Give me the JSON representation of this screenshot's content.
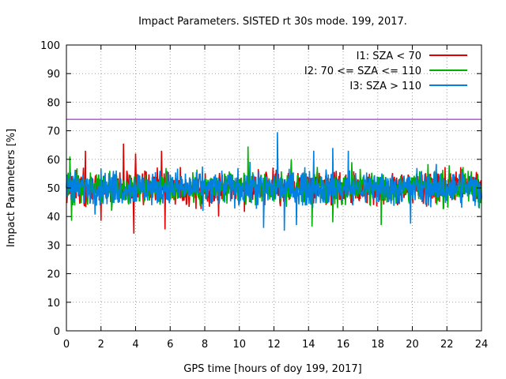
{
  "chart_data": {
    "type": "line",
    "title": "Impact Parameters. SISTED rt 30s mode. 199, 2017.",
    "xlabel": "GPS time [hours of doy 199, 2017]",
    "ylabel": "Impact Parameters [%]",
    "xlim": [
      0,
      24
    ],
    "ylim": [
      0,
      100
    ],
    "xticks": [
      0,
      2,
      4,
      6,
      8,
      10,
      12,
      14,
      16,
      18,
      20,
      22,
      24
    ],
    "yticks": [
      0,
      10,
      20,
      30,
      40,
      50,
      60,
      70,
      80,
      90,
      100
    ],
    "grid": true,
    "legend_position": "top-right",
    "reference_line": {
      "y": 74,
      "color": "#9400d3"
    },
    "series": [
      {
        "name": "I1: SZA < 70",
        "color": "#e00000",
        "mean": 50,
        "typical_range": [
          43,
          58
        ],
        "extremes": [
          34,
          65.5
        ],
        "peaks_high": [
          [
            1.1,
            63
          ],
          [
            3.3,
            65.5
          ],
          [
            4.0,
            62
          ],
          [
            5.5,
            63
          ]
        ],
        "peaks_low": [
          [
            2.0,
            38.5
          ],
          [
            3.9,
            34
          ],
          [
            5.7,
            35.5
          ],
          [
            8.8,
            40
          ]
        ]
      },
      {
        "name": "I2: 70 <= SZA <= 110",
        "color": "#00b000",
        "mean": 50,
        "typical_range": [
          43,
          58
        ],
        "extremes": [
          36.5,
          64.5
        ],
        "peaks_high": [
          [
            0.2,
            61
          ],
          [
            10.5,
            64.5
          ],
          [
            13.0,
            60
          ],
          [
            16.5,
            59
          ]
        ],
        "peaks_low": [
          [
            0.3,
            38.5
          ],
          [
            14.2,
            36.5
          ],
          [
            15.4,
            38
          ],
          [
            18.2,
            37
          ]
        ]
      },
      {
        "name": "I3: SZA > 110",
        "color": "#0080e0",
        "mean": 50,
        "typical_range": [
          42,
          58
        ],
        "extremes": [
          35,
          69.5
        ],
        "peaks_high": [
          [
            12.2,
            69.5
          ],
          [
            14.3,
            63
          ],
          [
            15.4,
            64
          ],
          [
            16.3,
            63
          ]
        ],
        "peaks_low": [
          [
            11.4,
            36
          ],
          [
            12.6,
            35
          ],
          [
            13.3,
            37
          ],
          [
            19.9,
            37.5
          ]
        ]
      }
    ]
  }
}
